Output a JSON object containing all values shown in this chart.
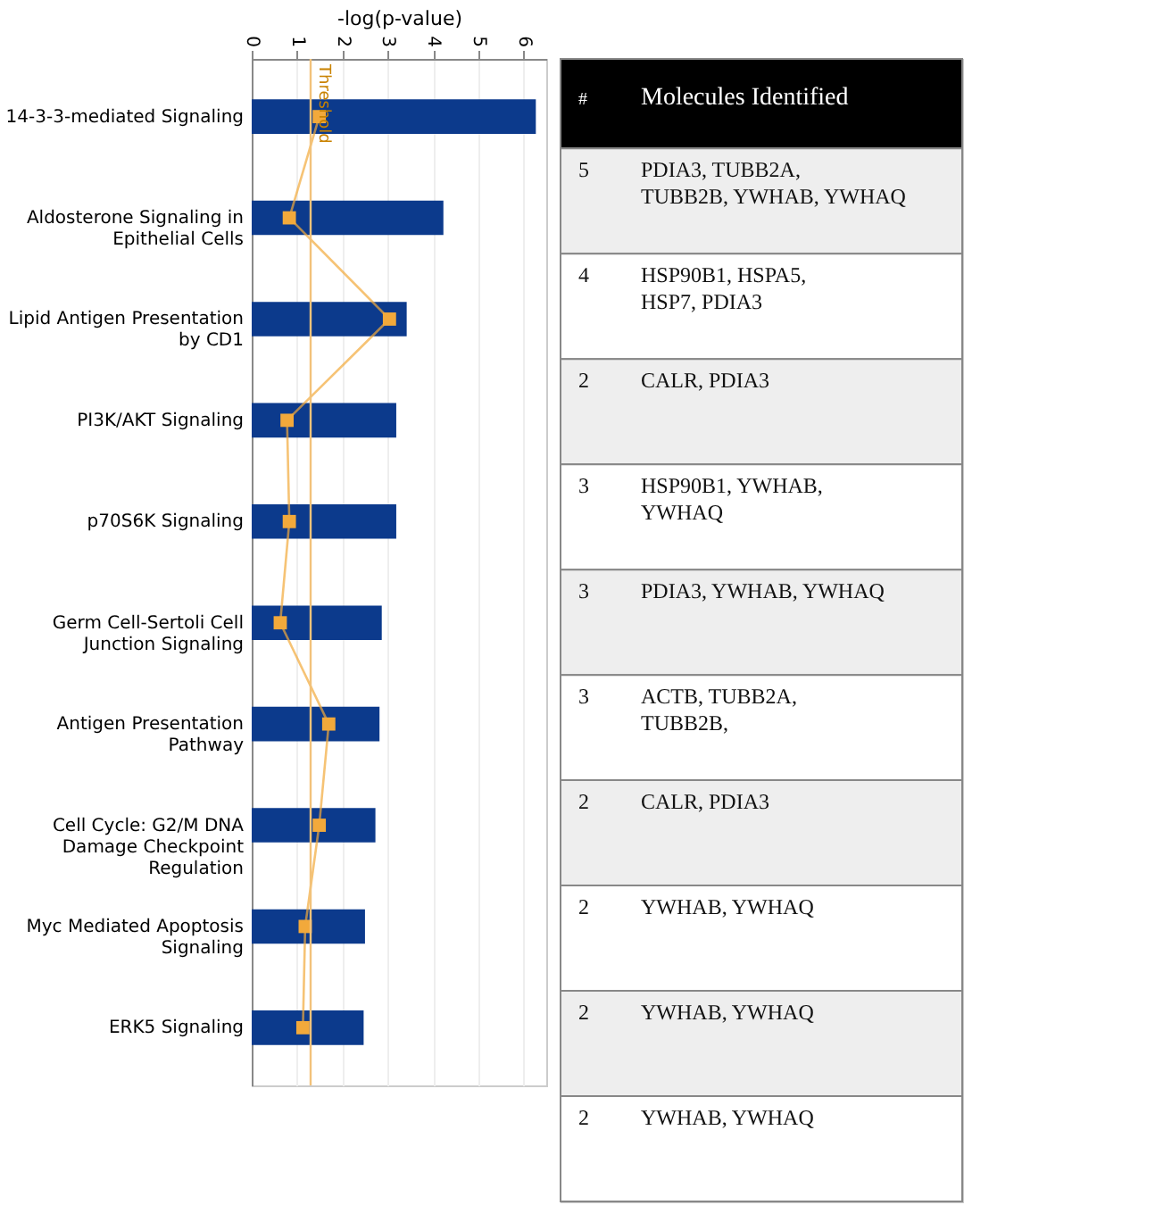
{
  "chart_data": [
    {
      "type": "bar",
      "orientation": "horizontal",
      "xlabel": "-log(p-value)",
      "categories": [
        "14-3-3-mediated Signaling",
        "Aldosterone Signaling in Epithelial Cells",
        "Lipid Antigen Presentation by CD1",
        "PI3K/AKT Signaling",
        "p70S6K Signaling",
        "Germ Cell-Sertoli Cell Junction Signaling",
        "Antigen Presentation Pathway",
        "Cell Cycle: G2/M DNA Damage Checkpoint Regulation",
        "Myc Mediated Apoptosis Signaling",
        "ERK5 Signaling"
      ],
      "series": [
        {
          "type": "bar",
          "color": "#0c3a8c",
          "values": [
            6.27,
            4.23,
            3.42,
            3.19,
            3.19,
            2.87,
            2.82,
            2.73,
            2.5,
            2.47
          ]
        },
        {
          "type": "line",
          "color": "#f2a93b",
          "values": [
            1.49,
            0.83,
            3.04,
            0.78,
            0.83,
            0.63,
            1.7,
            1.49,
            1.18,
            1.13
          ]
        }
      ],
      "marker": "square",
      "xlim": [
        0,
        6.5
      ],
      "xticks": [
        0,
        1,
        2,
        3,
        4,
        5,
        6
      ],
      "grid": "x",
      "ref_lines": [
        {
          "axis": "x",
          "value": 1.3,
          "label": "Threshold",
          "color": "#f2c27a"
        }
      ]
    },
    {
      "type": "other",
      "annotations": [
        "#",
        "Molecules Identified",
        "5",
        "PDIA3, TUBB2A, TUBB2B, YWHAB, YWHAQ",
        "4",
        "HSP90B1, HSPA5, HSP7, PDIA3",
        "2",
        "CALR, PDIA3",
        "3",
        "HSP90B1, YWHAB, YWHAQ",
        "3",
        "PDIA3, YWHAB, YWHAQ",
        "3",
        "ACTB, TUBB2A, TUBB2B,",
        "2",
        "CALR, PDIA3",
        "2",
        "YWHAB, YWHAQ",
        "2",
        "YWHAB, YWHAQ",
        "2",
        "YWHAB, YWHAQ"
      ]
    }
  ]
}
